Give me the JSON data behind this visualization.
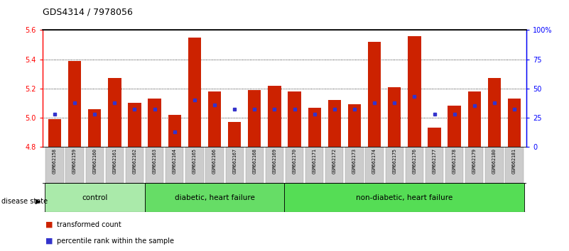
{
  "title": "GDS4314 / 7978056",
  "samples": [
    "GSM662158",
    "GSM662159",
    "GSM662160",
    "GSM662161",
    "GSM662162",
    "GSM662163",
    "GSM662164",
    "GSM662165",
    "GSM662166",
    "GSM662167",
    "GSM662168",
    "GSM662169",
    "GSM662170",
    "GSM662171",
    "GSM662172",
    "GSM662173",
    "GSM662174",
    "GSM662175",
    "GSM662176",
    "GSM662177",
    "GSM662178",
    "GSM662179",
    "GSM662180",
    "GSM662181"
  ],
  "red_values": [
    4.99,
    5.39,
    5.06,
    5.27,
    5.1,
    5.13,
    5.02,
    5.55,
    5.18,
    4.97,
    5.19,
    5.22,
    5.18,
    5.07,
    5.12,
    5.09,
    5.52,
    5.21,
    5.56,
    4.93,
    5.08,
    5.18,
    5.27,
    5.13
  ],
  "blue_percentile": [
    28,
    38,
    28,
    38,
    32,
    32,
    13,
    40,
    36,
    32,
    32,
    32,
    32,
    28,
    32,
    32,
    38,
    38,
    43,
    28,
    28,
    35,
    38,
    32
  ],
  "group_ranges": [
    [
      0,
      5
    ],
    [
      5,
      12
    ],
    [
      12,
      24
    ]
  ],
  "group_labels": [
    "control",
    "diabetic, heart failure",
    "non-diabetic, heart failure"
  ],
  "ylim_left": [
    4.8,
    5.6
  ],
  "yticks_left": [
    4.8,
    5.0,
    5.2,
    5.4,
    5.6
  ],
  "ylim_right": [
    0,
    100
  ],
  "yticks_right": [
    0,
    25,
    50,
    75,
    100
  ],
  "ytick_labels_right": [
    "0",
    "25",
    "50",
    "75",
    "100%"
  ],
  "bar_color": "#CC2200",
  "blue_color": "#3333CC",
  "base_value": 4.8,
  "grid_yticks": [
    5.0,
    5.2,
    5.4
  ],
  "group_color_control": "#AAEAAA",
  "group_color_diabetic": "#66DD66",
  "group_color_nondiabetic": "#55DD55"
}
